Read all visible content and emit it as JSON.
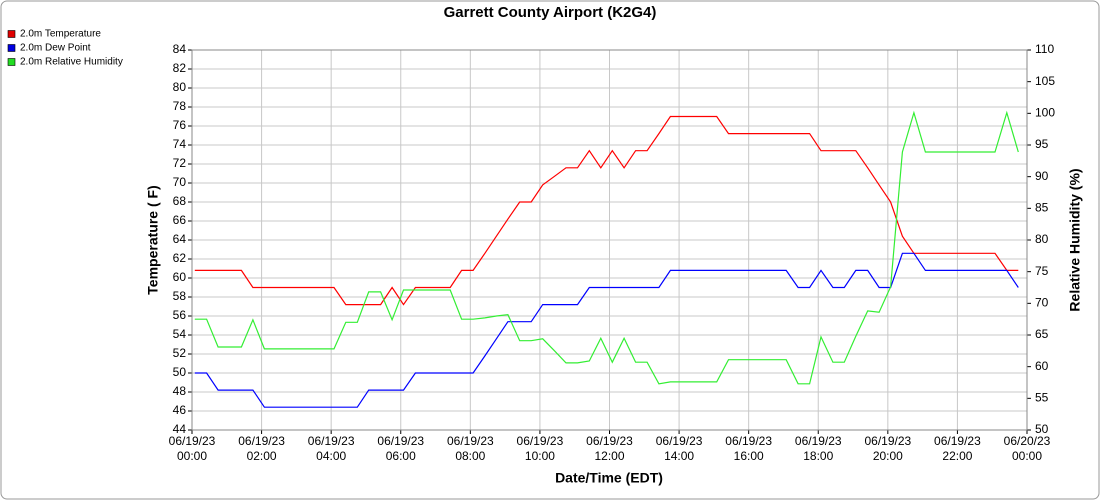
{
  "chart_data": {
    "type": "line",
    "title": "Garrett County Airport (K2G4)",
    "x_label": "Date/Time (EDT)",
    "y_label": "Temperature ( F)",
    "y2_label": "Relative Humidity (%)",
    "legend": "top-left",
    "grid": true,
    "xlim": [
      0,
      24
    ],
    "xticks": [
      {
        "value": 0,
        "label": [
          "06/19/23",
          "00:00"
        ]
      },
      {
        "value": 2,
        "label": [
          "06/19/23",
          "02:00"
        ]
      },
      {
        "value": 4,
        "label": [
          "06/19/23",
          "04:00"
        ]
      },
      {
        "value": 6,
        "label": [
          "06/19/23",
          "06:00"
        ]
      },
      {
        "value": 8,
        "label": [
          "06/19/23",
          "08:00"
        ]
      },
      {
        "value": 10,
        "label": [
          "06/19/23",
          "10:00"
        ]
      },
      {
        "value": 12,
        "label": [
          "06/19/23",
          "12:00"
        ]
      },
      {
        "value": 14,
        "label": [
          "06/19/23",
          "14:00"
        ]
      },
      {
        "value": 16,
        "label": [
          "06/19/23",
          "16:00"
        ]
      },
      {
        "value": 18,
        "label": [
          "06/19/23",
          "18:00"
        ]
      },
      {
        "value": 20,
        "label": [
          "06/19/23",
          "20:00"
        ]
      },
      {
        "value": 22,
        "label": [
          "06/19/23",
          "22:00"
        ]
      },
      {
        "value": 24,
        "label": [
          "06/20/23",
          "00:00"
        ]
      }
    ],
    "ylim": [
      44,
      84
    ],
    "yticks": [
      44,
      46,
      48,
      50,
      52,
      54,
      56,
      58,
      60,
      62,
      64,
      66,
      68,
      70,
      72,
      74,
      76,
      78,
      80,
      82,
      84
    ],
    "y2lim": [
      50,
      110
    ],
    "y2ticks": [
      50,
      55,
      60,
      65,
      70,
      75,
      80,
      85,
      90,
      95,
      100,
      105,
      110
    ],
    "x": [
      0.08,
      0.42,
      0.75,
      1.08,
      1.42,
      1.75,
      2.08,
      2.42,
      2.75,
      3.08,
      3.42,
      3.75,
      4.08,
      4.42,
      4.75,
      5.08,
      5.42,
      5.75,
      6.08,
      6.42,
      6.75,
      7.08,
      7.42,
      7.75,
      8.08,
      8.42,
      8.75,
      9.08,
      9.42,
      9.75,
      10.08,
      10.42,
      10.75,
      11.08,
      11.42,
      11.75,
      12.08,
      12.42,
      12.75,
      13.08,
      13.42,
      13.75,
      14.08,
      14.42,
      14.75,
      15.08,
      15.42,
      15.75,
      16.08,
      16.42,
      16.75,
      17.08,
      17.42,
      17.75,
      18.08,
      18.42,
      18.75,
      19.08,
      19.42,
      19.75,
      20.08,
      20.42,
      20.75,
      21.08,
      21.42,
      21.75,
      22.08,
      22.42,
      22.75,
      23.08,
      23.42,
      23.75
    ],
    "series": [
      {
        "name": "2.0m Temperature",
        "color": "#ff0000",
        "legend_color": "#e00000",
        "values": [
          60.8,
          60.8,
          60.8,
          60.8,
          60.8,
          59,
          59,
          59,
          59,
          59,
          59,
          59,
          59,
          57.2,
          57.2,
          57.2,
          57.2,
          59,
          57.2,
          59,
          59,
          59,
          59,
          60.8,
          60.8,
          62.6,
          64.4,
          66.2,
          68,
          68,
          69.8,
          70.7,
          71.6,
          71.6,
          73.4,
          71.6,
          73.4,
          71.6,
          73.4,
          73.4,
          75.2,
          77,
          77,
          77,
          77,
          77,
          75.2,
          75.2,
          75.2,
          75.2,
          75.2,
          75.2,
          75.2,
          75.2,
          73.4,
          73.4,
          73.4,
          73.4,
          71.6,
          69.8,
          68,
          64.4,
          62.6,
          62.6,
          62.6,
          62.6,
          62.6,
          62.6,
          62.6,
          62.6,
          60.8,
          60.8
        ]
      },
      {
        "name": "2.0m Dew Point",
        "color": "#0000ff",
        "legend_color": "#0000e0",
        "values": [
          50,
          50,
          48.2,
          48.2,
          48.2,
          48.2,
          46.4,
          46.4,
          46.4,
          46.4,
          46.4,
          46.4,
          46.4,
          46.4,
          46.4,
          48.2,
          48.2,
          48.2,
          48.2,
          50,
          50,
          50,
          50,
          50,
          50,
          51.8,
          53.6,
          55.4,
          55.4,
          55.4,
          57.2,
          57.2,
          57.2,
          57.2,
          59,
          59,
          59,
          59,
          59,
          59,
          59,
          60.8,
          60.8,
          60.8,
          60.8,
          60.8,
          60.8,
          60.8,
          60.8,
          60.8,
          60.8,
          60.8,
          59,
          59,
          60.8,
          59,
          59,
          60.8,
          60.8,
          59,
          59,
          62.6,
          62.6,
          60.8,
          60.8,
          60.8,
          60.8,
          60.8,
          60.8,
          60.8,
          60.8,
          59
        ]
      },
      {
        "name": "2.0m Relative Humidity",
        "color": "#33ee33",
        "legend_color": "#22dd22",
        "axis": "y2",
        "values": [
          67.5,
          67.5,
          63.1,
          63.1,
          63.1,
          67.4,
          62.8,
          62.8,
          62.8,
          62.8,
          62.8,
          62.8,
          62.8,
          67,
          67,
          71.8,
          71.8,
          67.4,
          72.1,
          72.1,
          72.1,
          72.1,
          72.1,
          67.5,
          67.5,
          67.7,
          68,
          68.2,
          64.1,
          64.1,
          64.4,
          62.5,
          60.6,
          60.6,
          60.9,
          64.5,
          60.7,
          64.5,
          60.7,
          60.7,
          57.3,
          57.6,
          57.6,
          57.6,
          57.6,
          57.6,
          61.1,
          61.1,
          61.1,
          61.1,
          61.1,
          61.1,
          57.3,
          57.3,
          64.7,
          60.7,
          60.7,
          64.8,
          68.8,
          68.6,
          72.6,
          93.9,
          100.1,
          93.9,
          93.9,
          93.9,
          93.9,
          93.9,
          93.9,
          93.9,
          100.1,
          93.9
        ]
      }
    ]
  }
}
